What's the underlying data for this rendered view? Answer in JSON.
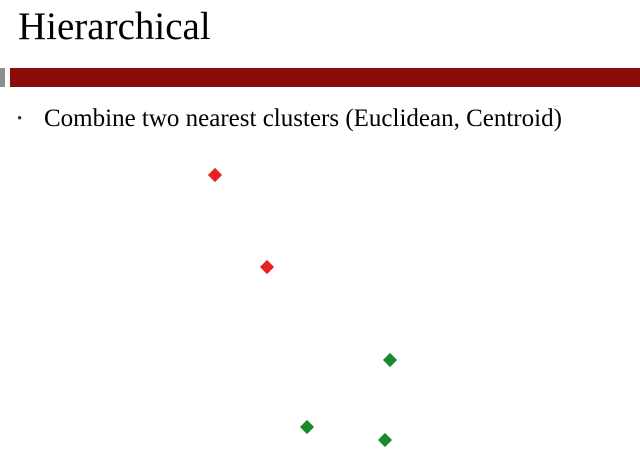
{
  "slide": {
    "title": "Hierarchical",
    "rule_color": "#8b0a0a",
    "bullets": [
      {
        "marker": "•",
        "text": "Combine two nearest clusters (Euclidean, Centroid)"
      }
    ]
  },
  "points": [
    {
      "cluster": "red",
      "color": "#e8201f"
    },
    {
      "cluster": "red",
      "color": "#e8201f"
    },
    {
      "cluster": "green",
      "color": "#1a8a2e"
    },
    {
      "cluster": "green",
      "color": "#1a8a2e"
    },
    {
      "cluster": "green",
      "color": "#1a8a2e"
    }
  ]
}
